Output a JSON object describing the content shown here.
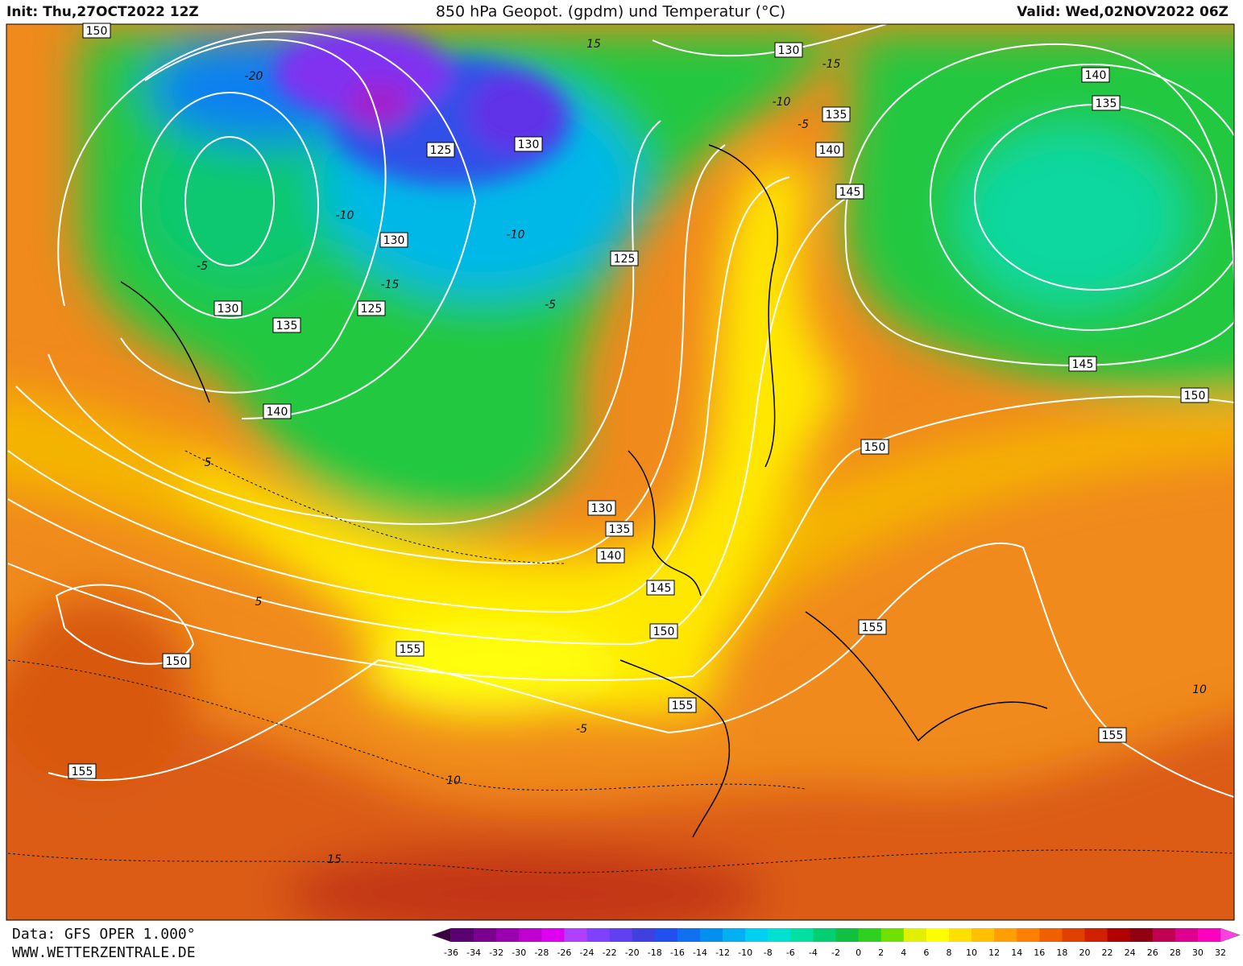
{
  "header": {
    "init": "Init: Thu,27OCT2022 12Z",
    "title": "850 hPa Geopot. (gpdm) und Temperatur (°C)",
    "valid": "Valid: Wed,02NOV2022 06Z"
  },
  "contour_labels": [
    150,
    125,
    130,
    130,
    130,
    125,
    135,
    140,
    125,
    130,
    135,
    140,
    145,
    140,
    135,
    145,
    150,
    150,
    130,
    135,
    140,
    145,
    150,
    155,
    150,
    155,
    155,
    155,
    155
  ],
  "temperature_labels": [
    -20,
    -15,
    15,
    -10,
    -5,
    -10,
    -10,
    -5,
    -5,
    -15,
    5,
    5,
    -5,
    10,
    15,
    10
  ],
  "footer": {
    "source": "Data: GFS OPER 1.000°",
    "website": "WWW.WETTERZENTRALE.DE"
  },
  "colorbar": {
    "labels": [
      -36,
      -34,
      -32,
      -30,
      -28,
      -26,
      -24,
      -22,
      -20,
      -18,
      -16,
      -14,
      -12,
      -10,
      -8,
      -6,
      -4,
      -2,
      0,
      2,
      4,
      6,
      8,
      10,
      12,
      14,
      16,
      18,
      20,
      22,
      24,
      26,
      28,
      30,
      32
    ],
    "colors": [
      "#3a003f",
      "#5a0070",
      "#7a0090",
      "#9a00b0",
      "#c000d0",
      "#e000f0",
      "#b040ff",
      "#8040ff",
      "#6040f0",
      "#4040e0",
      "#2050f0",
      "#1070f0",
      "#0090f0",
      "#00b0f0",
      "#00d0f0",
      "#00e0d0",
      "#00e0a0",
      "#00d070",
      "#10c040",
      "#30d020",
      "#70e000",
      "#e0f000",
      "#ffff00",
      "#ffe000",
      "#ffc000",
      "#ffa000",
      "#ff8000",
      "#f06000",
      "#e04000",
      "#d02000",
      "#b00000",
      "#900010",
      "#c00050",
      "#e00090",
      "#ff00c0",
      "#ff40e0"
    ]
  }
}
